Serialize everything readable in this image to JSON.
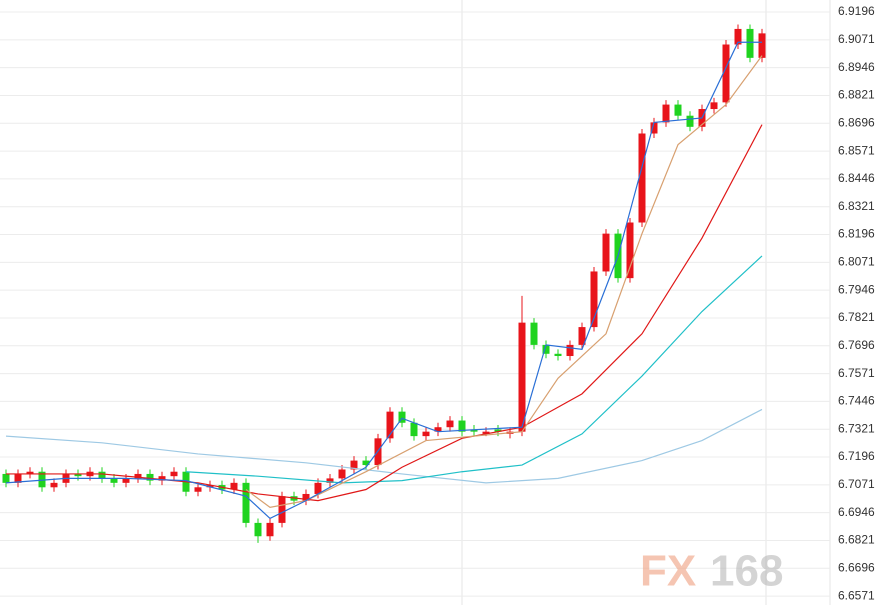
{
  "chart_data": {
    "type": "candlestick",
    "ylim": [
      6.6531,
      6.925
    ],
    "yticks": [
      6.6571,
      6.6696,
      6.6821,
      6.6946,
      6.7071,
      6.7196,
      6.7321,
      6.7446,
      6.7571,
      6.7696,
      6.7821,
      6.7946,
      6.8071,
      6.8196,
      6.8321,
      6.8446,
      6.8571,
      6.8696,
      6.8821,
      6.8946,
      6.9071,
      6.9196
    ],
    "xlim": [
      -0.5,
      63.5
    ],
    "grid": true,
    "up_color": "#e8141b",
    "down_color": "#1fd31f",
    "candles": {
      "open": [
        6.712,
        6.708,
        6.712,
        6.713,
        6.706,
        6.708,
        6.712,
        6.711,
        6.713,
        6.71,
        6.708,
        6.71,
        6.712,
        6.709,
        6.711,
        6.713,
        6.704,
        6.706,
        6.707,
        6.705,
        6.708,
        6.69,
        6.684,
        6.69,
        6.702,
        6.7,
        6.703,
        6.708,
        6.71,
        6.714,
        6.718,
        6.716,
        6.728,
        6.74,
        6.735,
        6.729,
        6.731,
        6.733,
        6.736,
        6.732,
        6.73,
        6.732,
        6.73,
        6.731,
        6.78,
        6.77,
        6.766,
        6.765,
        6.77,
        6.778,
        6.803,
        6.82,
        6.8,
        6.825,
        6.865,
        6.87,
        6.878,
        6.873,
        6.868,
        6.876,
        6.879,
        6.905,
        6.912,
        6.899
      ],
      "high": [
        6.714,
        6.714,
        6.715,
        6.715,
        6.71,
        6.714,
        6.714,
        6.715,
        6.715,
        6.712,
        6.712,
        6.714,
        6.714,
        6.713,
        6.715,
        6.715,
        6.708,
        6.709,
        6.709,
        6.71,
        6.71,
        6.692,
        6.692,
        6.704,
        6.704,
        6.705,
        6.71,
        6.712,
        6.716,
        6.72,
        6.72,
        6.73,
        6.742,
        6.742,
        6.737,
        6.733,
        6.735,
        6.738,
        6.738,
        6.734,
        6.733,
        6.734,
        6.733,
        6.792,
        6.782,
        6.772,
        6.768,
        6.772,
        6.78,
        6.805,
        6.822,
        6.822,
        6.827,
        6.867,
        6.872,
        6.88,
        6.88,
        6.875,
        6.878,
        6.881,
        6.907,
        6.914,
        6.914,
        6.912
      ],
      "low": [
        6.706,
        6.706,
        6.71,
        6.704,
        6.704,
        6.706,
        6.709,
        6.709,
        6.708,
        6.706,
        6.706,
        6.708,
        6.707,
        6.707,
        6.709,
        6.702,
        6.702,
        6.704,
        6.703,
        6.703,
        6.688,
        6.681,
        6.682,
        6.688,
        6.698,
        6.698,
        6.701,
        6.706,
        6.708,
        6.712,
        6.714,
        6.714,
        6.726,
        6.733,
        6.727,
        6.727,
        6.729,
        6.731,
        6.729,
        6.729,
        6.729,
        6.729,
        6.728,
        6.729,
        6.768,
        6.764,
        6.763,
        6.763,
        6.768,
        6.776,
        6.801,
        6.798,
        6.798,
        6.823,
        6.863,
        6.868,
        6.871,
        6.866,
        6.866,
        6.874,
        6.877,
        6.903,
        6.897,
        6.897
      ],
      "close": [
        6.708,
        6.712,
        6.713,
        6.706,
        6.708,
        6.712,
        6.711,
        6.713,
        6.71,
        6.708,
        6.71,
        6.712,
        6.709,
        6.711,
        6.713,
        6.704,
        6.706,
        6.707,
        6.705,
        6.708,
        6.69,
        6.684,
        6.69,
        6.702,
        6.7,
        6.703,
        6.708,
        6.71,
        6.714,
        6.718,
        6.716,
        6.728,
        6.74,
        6.735,
        6.729,
        6.731,
        6.733,
        6.736,
        6.731,
        6.731,
        6.731,
        6.731,
        6.731,
        6.78,
        6.77,
        6.766,
        6.765,
        6.77,
        6.778,
        6.803,
        6.82,
        6.8,
        6.825,
        6.865,
        6.87,
        6.878,
        6.873,
        6.868,
        6.876,
        6.879,
        6.905,
        6.912,
        6.899,
        6.91
      ]
    },
    "lines": [
      {
        "color": "#9ec9e4",
        "x": [
          0,
          8,
          16,
          25,
          33,
          40,
          46,
          53,
          58,
          63
        ],
        "values": [
          6.729,
          6.726,
          6.721,
          6.717,
          6.712,
          6.708,
          6.71,
          6.718,
          6.727,
          6.741
        ]
      },
      {
        "color": "#20c0c8",
        "x": [
          15,
          21,
          28,
          33,
          38,
          43,
          48,
          53,
          58,
          63
        ],
        "values": [
          6.713,
          6.711,
          6.708,
          6.709,
          6.713,
          6.716,
          6.73,
          6.756,
          6.785,
          6.81
        ]
      },
      {
        "color": "#e01818",
        "x": [
          0,
          8,
          16,
          21,
          26,
          30,
          33,
          38,
          43,
          48,
          53,
          58,
          63
        ],
        "values": [
          6.712,
          6.712,
          6.708,
          6.703,
          6.7,
          6.705,
          6.715,
          6.728,
          6.733,
          6.748,
          6.775,
          6.818,
          6.869
        ]
      },
      {
        "color": "#d8a070",
        "x": [
          20,
          22,
          25,
          30,
          35,
          43,
          46,
          50,
          53,
          56,
          60,
          63
        ],
        "values": [
          6.705,
          6.697,
          6.7,
          6.713,
          6.727,
          6.731,
          6.755,
          6.775,
          6.82,
          6.86,
          6.878,
          6.9
        ]
      },
      {
        "color": "#2a6fd6",
        "x": [
          0,
          5,
          10,
          15,
          20,
          22,
          25,
          30,
          33,
          36,
          43,
          45,
          48,
          51,
          54,
          58,
          61,
          63
        ],
        "values": [
          6.708,
          6.71,
          6.71,
          6.709,
          6.702,
          6.692,
          6.7,
          6.715,
          6.737,
          6.731,
          6.733,
          6.77,
          6.768,
          6.81,
          6.87,
          6.872,
          6.906,
          6.906
        ]
      }
    ],
    "watermark": {
      "left": "FX",
      "right": "168"
    }
  }
}
